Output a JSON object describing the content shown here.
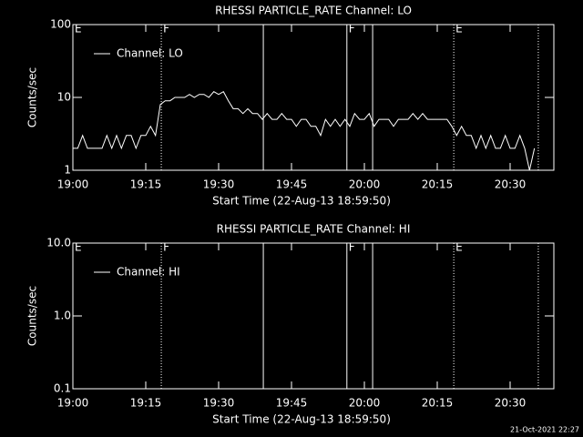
{
  "footer": "21-Oct-2021 22:27",
  "chart_data": [
    {
      "type": "line",
      "title": "RHESSI PARTICLE_RATE Channel: LO",
      "xlabel": "Start Time (22-Aug-13 18:59:50)",
      "ylabel": "Counts/sec",
      "log_y": true,
      "legend": "upper left",
      "xlim": [
        0,
        99
      ],
      "xticks": [
        {
          "value": 0,
          "label": "19:00"
        },
        {
          "value": 15,
          "label": "19:15"
        },
        {
          "value": 30,
          "label": "19:30"
        },
        {
          "value": 45,
          "label": "19:45"
        },
        {
          "value": 60,
          "label": "20:00"
        },
        {
          "value": 75,
          "label": "20:15"
        },
        {
          "value": 90,
          "label": "20:30"
        }
      ],
      "ylim": [
        1,
        100
      ],
      "yticks": [
        1,
        10,
        100
      ],
      "flags": [
        {
          "x": 18.2,
          "style": "dotted"
        },
        {
          "x": 39.2,
          "style": "solid"
        },
        {
          "x": 56.4,
          "style": "solid"
        },
        {
          "x": 61.7,
          "style": "solid"
        },
        {
          "x": 78.4,
          "style": "dotted"
        },
        {
          "x": 95.8,
          "style": "dotted"
        }
      ],
      "flag_labels": [
        {
          "x": 0,
          "label": "E"
        },
        {
          "x": 18.2,
          "label": "F"
        },
        {
          "x": 56.4,
          "label": "F"
        },
        {
          "x": 78.4,
          "label": "E"
        }
      ],
      "series": [
        {
          "name": "Channel: LO",
          "color": "#ffffff",
          "x": [
            0,
            1,
            2,
            3,
            4,
            5,
            6,
            7,
            8,
            9,
            10,
            11,
            12,
            13,
            14,
            15,
            16,
            17,
            18,
            19,
            20,
            21,
            22,
            23,
            24,
            25,
            26,
            27,
            28,
            29,
            30,
            31,
            32,
            33,
            34,
            35,
            36,
            37,
            38,
            39,
            40,
            41,
            42,
            43,
            44,
            45,
            46,
            47,
            48,
            49,
            50,
            51,
            52,
            53,
            54,
            55,
            56,
            57,
            58,
            59,
            60,
            61,
            62,
            63,
            64,
            65,
            66,
            67,
            68,
            69,
            70,
            71,
            72,
            73,
            74,
            75,
            76,
            77,
            78,
            79,
            80,
            81,
            82,
            83,
            84,
            85,
            86,
            87,
            88,
            89,
            90,
            91,
            92,
            93,
            94,
            95
          ],
          "values": [
            2,
            2,
            3,
            2,
            2,
            2,
            2,
            3,
            2,
            3,
            2,
            3,
            3,
            2,
            3,
            3,
            4,
            3,
            8,
            9,
            9,
            10,
            10,
            10,
            11,
            10,
            11,
            11,
            10,
            12,
            11,
            12,
            9,
            7,
            7,
            6,
            7,
            6,
            6,
            5,
            6,
            5,
            5,
            6,
            5,
            5,
            4,
            5,
            5,
            4,
            4,
            3,
            5,
            4,
            5,
            4,
            5,
            4,
            6,
            5,
            5,
            6,
            4,
            5,
            5,
            5,
            4,
            5,
            5,
            5,
            6,
            5,
            6,
            5,
            5,
            5,
            5,
            5,
            4,
            3,
            4,
            3,
            3,
            2,
            3,
            2,
            3,
            2,
            2,
            3,
            2,
            2,
            3,
            2,
            1,
            2
          ]
        }
      ]
    },
    {
      "type": "line",
      "title": "RHESSI PARTICLE_RATE Channel: HI",
      "xlabel": "Start Time (22-Aug-13 18:59:50)",
      "ylabel": "Counts/sec",
      "log_y": true,
      "legend": "upper left",
      "xlim": [
        0,
        99
      ],
      "xticks": [
        {
          "value": 0,
          "label": "19:00"
        },
        {
          "value": 15,
          "label": "19:15"
        },
        {
          "value": 30,
          "label": "19:30"
        },
        {
          "value": 45,
          "label": "19:45"
        },
        {
          "value": 60,
          "label": "20:00"
        },
        {
          "value": 75,
          "label": "20:15"
        },
        {
          "value": 90,
          "label": "20:30"
        }
      ],
      "ylim": [
        0.1,
        10
      ],
      "yticks": [
        0.1,
        {
          "value": 1,
          "label": "1.0"
        },
        {
          "value": 10,
          "label": "10.0"
        }
      ],
      "flags": [
        {
          "x": 18.2,
          "style": "dotted"
        },
        {
          "x": 39.2,
          "style": "solid"
        },
        {
          "x": 56.4,
          "style": "solid"
        },
        {
          "x": 61.7,
          "style": "solid"
        },
        {
          "x": 78.4,
          "style": "dotted"
        },
        {
          "x": 95.8,
          "style": "dotted"
        }
      ],
      "flag_labels": [
        {
          "x": 0,
          "label": "E"
        },
        {
          "x": 18.2,
          "label": "F"
        },
        {
          "x": 56.4,
          "label": "F"
        },
        {
          "x": 78.4,
          "label": "E"
        }
      ],
      "series": [
        {
          "name": "Channel: HI",
          "color": "#ffffff",
          "x": [],
          "values": []
        }
      ]
    }
  ]
}
